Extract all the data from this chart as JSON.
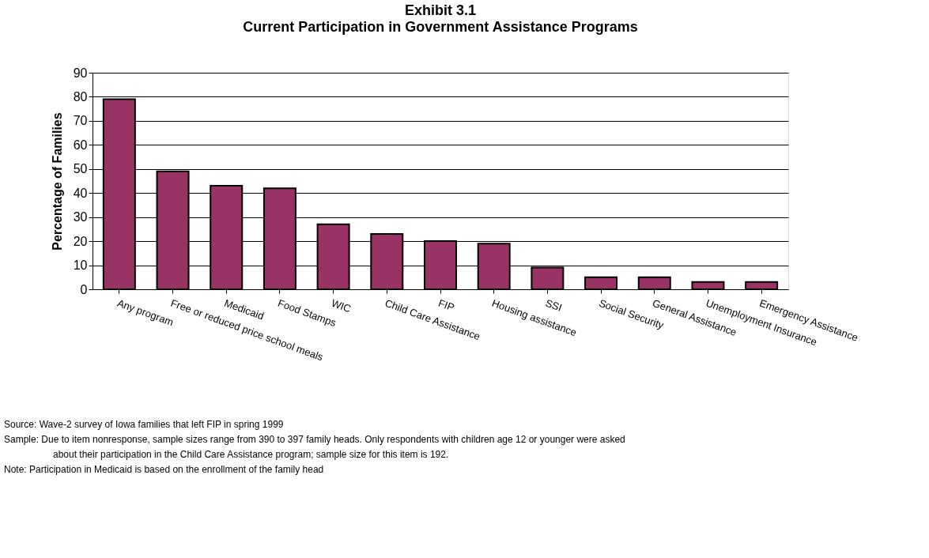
{
  "chart_data": {
    "type": "bar",
    "title": "Exhibit 3.1",
    "subtitle": "Current Participation in Government Assistance Programs",
    "ylabel": "Percentage of Families",
    "categories": [
      "Any program",
      "Free or reduced price school meals",
      "Medicaid",
      "Food Stamps",
      "WIC",
      "Child Care Assistance",
      "FIP",
      "Housing assistance",
      "SSI",
      "Social Security",
      "General Assistance",
      "Unemployment Insurance",
      "Emergency Assistance"
    ],
    "values": [
      79,
      49,
      43,
      42,
      27,
      23,
      20,
      19,
      9,
      5,
      5,
      3,
      3
    ],
    "color": "#993366",
    "ylim": [
      0,
      90
    ],
    "yticks": [
      0,
      10,
      20,
      30,
      40,
      50,
      60,
      70,
      80,
      90
    ],
    "grid": "y",
    "annotations": [
      "Source:  Wave-2 survey of Iowa families that left FIP in spring 1999",
      "Sample:  Due to item nonresponse, sample sizes range from 390 to 397 family heads.   Only respondents with children age 12 or younger were asked",
      "about their participation in the Child Care Assistance  program; sample size for this item is 192.",
      "Note:       Participation in Medicaid is based on the enrollment of the family head"
    ]
  }
}
